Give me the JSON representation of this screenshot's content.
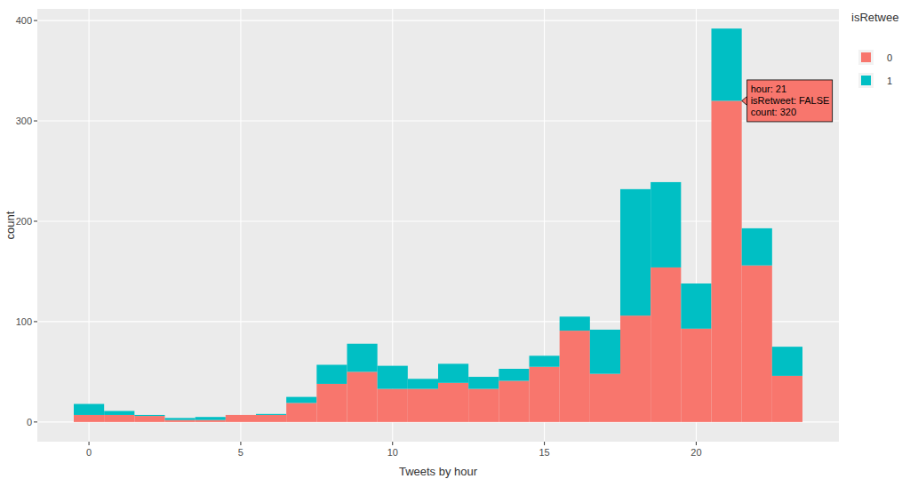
{
  "chart_data": {
    "type": "histogram",
    "x_label": "Tweets by hour",
    "y_label": "count",
    "bins": [
      -0.5,
      0.5,
      1.5,
      2.5,
      3.5,
      4.5,
      5.5,
      6.5,
      7.5,
      8.5,
      9.5,
      10.5,
      11.5,
      12.5,
      13.5,
      14.5,
      15.5,
      16.5,
      17.5,
      18.5,
      19.5,
      20.5,
      21.5,
      22.5,
      23.5
    ],
    "series": [
      {
        "name": "0",
        "color": "#F8766D",
        "values": [
          7,
          7,
          6,
          2,
          2,
          7,
          7,
          19,
          38,
          50,
          33,
          33,
          39,
          33,
          41,
          55,
          91,
          48,
          106,
          154,
          93,
          320,
          156,
          46
        ]
      },
      {
        "name": "1",
        "color": "#00BFC4",
        "values": [
          11,
          4,
          1,
          2,
          3,
          0,
          1,
          6,
          19,
          28,
          23,
          10,
          19,
          12,
          12,
          11,
          14,
          44,
          126,
          85,
          45,
          72,
          37,
          29
        ]
      }
    ],
    "stacked": true,
    "legend_title": "isRetwee",
    "legend": "right",
    "grid": true,
    "xlim": [
      -1.7,
      24.7
    ],
    "xticks": [
      0,
      5,
      10,
      15,
      20
    ],
    "ylim": [
      -19.6,
      411.6
    ],
    "yticks": [
      0,
      100,
      200,
      300,
      400
    ],
    "annotations": [
      {
        "x": 21,
        "y": 320,
        "text": [
          "hour: 21",
          "isRetweet: FALSE",
          "count: 320"
        ]
      }
    ]
  }
}
